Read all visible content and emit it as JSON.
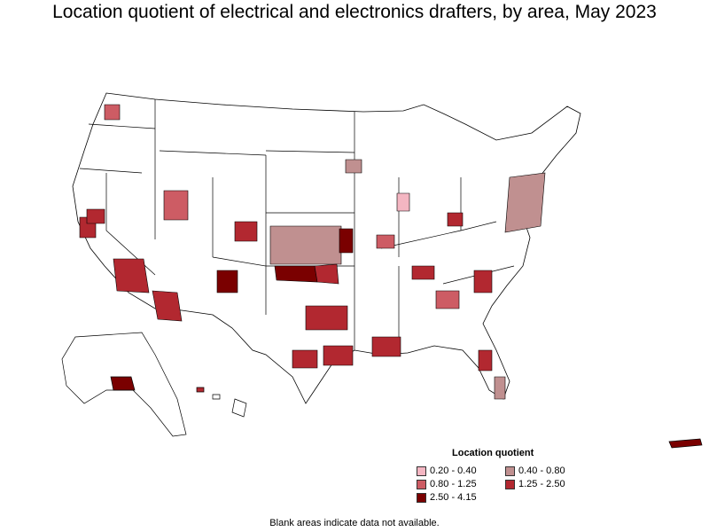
{
  "title": "Location quotient of electrical and electronics drafters, by area, May 2023",
  "legend": {
    "title": "Location quotient",
    "items": [
      {
        "label": "0.20 - 0.40",
        "color": "#f4b6c2"
      },
      {
        "label": "0.40 - 0.80",
        "color": "#c09090"
      },
      {
        "label": "0.80 - 1.25",
        "color": "#cd5c64"
      },
      {
        "label": "1.25 - 2.50",
        "color": "#b22830"
      },
      {
        "label": "2.50 - 4.15",
        "color": "#7a0000"
      }
    ]
  },
  "footnote": "Blank areas indicate data not available.",
  "colors": {
    "no_data": "#ffffff",
    "border": "#000000",
    "q1": "#f4b6c2",
    "q2": "#c09090",
    "q3": "#cd5c64",
    "q4": "#b22830",
    "q5": "#7a0000"
  }
}
